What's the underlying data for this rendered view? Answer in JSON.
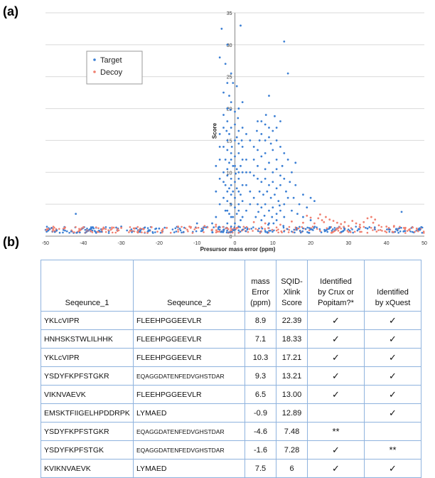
{
  "panel_a_label": "(a)",
  "panel_b_label": "(b)",
  "chart_data": {
    "type": "scatter",
    "title": "",
    "xlabel": "Presursor mass error  (ppm)",
    "ylabel": "Score",
    "xlim": [
      -50,
      50
    ],
    "ylim": [
      0,
      35
    ],
    "x_ticks": [
      "-50",
      "-40",
      "-30",
      "-20",
      "-10",
      "0",
      "10",
      "20",
      "30",
      "40",
      "50"
    ],
    "y_ticks": [
      "0",
      "5",
      "10",
      "15",
      "20",
      "25",
      "30",
      "35"
    ],
    "grid": "horizontal",
    "legend_position": "upper-left",
    "series": [
      {
        "name": "Target",
        "color": "#3b7fd4",
        "points": [
          [
            -3.5,
            32.5
          ],
          [
            1.5,
            33
          ],
          [
            13,
            30.5
          ],
          [
            -2,
            30
          ],
          [
            -4,
            28
          ],
          [
            -2.5,
            27
          ],
          [
            -1,
            25.5
          ],
          [
            -0.5,
            24
          ],
          [
            0.5,
            23.5
          ],
          [
            -1.5,
            22
          ],
          [
            -2,
            20
          ],
          [
            9,
            22
          ],
          [
            14,
            25.5
          ],
          [
            -3,
            19
          ],
          [
            -2,
            18
          ],
          [
            -1,
            17
          ],
          [
            0,
            17.5
          ],
          [
            1,
            16.5
          ],
          [
            2,
            17
          ],
          [
            -1.5,
            16
          ],
          [
            0.5,
            15.5
          ],
          [
            6,
            18
          ],
          [
            7,
            18
          ],
          [
            8,
            17.5
          ],
          [
            9,
            17
          ],
          [
            10,
            16.5
          ],
          [
            11,
            17
          ],
          [
            6.5,
            15
          ],
          [
            8,
            15
          ],
          [
            9.5,
            14.5
          ],
          [
            11,
            15
          ],
          [
            12,
            14
          ],
          [
            5,
            14
          ],
          [
            -3,
            14
          ],
          [
            -2,
            13.5
          ],
          [
            -1,
            13
          ],
          [
            0,
            12.5
          ],
          [
            1,
            13
          ],
          [
            2,
            14
          ],
          [
            -2.5,
            12
          ],
          [
            -1.5,
            11.5
          ],
          [
            -0.5,
            11
          ],
          [
            0.5,
            10.5
          ],
          [
            1.5,
            11
          ],
          [
            -3,
            10
          ],
          [
            -2,
            9.5
          ],
          [
            -1,
            9
          ],
          [
            0,
            8.5
          ],
          [
            1,
            9
          ],
          [
            2,
            10
          ],
          [
            -2.5,
            8
          ],
          [
            -1.5,
            7.5
          ],
          [
            -0.5,
            7
          ],
          [
            0.5,
            7.5
          ],
          [
            1.5,
            6.5
          ],
          [
            -3,
            6
          ],
          [
            -2,
            5.5
          ],
          [
            -1,
            5
          ],
          [
            0,
            4.5
          ],
          [
            1,
            5
          ],
          [
            2,
            5.5
          ],
          [
            -2.5,
            4
          ],
          [
            -1.5,
            3.5
          ],
          [
            -0.5,
            3
          ],
          [
            0.5,
            3.5
          ],
          [
            1.5,
            2.5
          ],
          [
            -2,
            2
          ],
          [
            0,
            2
          ],
          [
            -1,
            1.5
          ],
          [
            1,
            1.5
          ],
          [
            5,
            12
          ],
          [
            6,
            11
          ],
          [
            7,
            12.5
          ],
          [
            8,
            10.5
          ],
          [
            9,
            11.5
          ],
          [
            10,
            10
          ],
          [
            11,
            12
          ],
          [
            12,
            9.5
          ],
          [
            6,
            9
          ],
          [
            7,
            8.5
          ],
          [
            8,
            9
          ],
          [
            9,
            8
          ],
          [
            10,
            8.5
          ],
          [
            11,
            7.5
          ],
          [
            12,
            8
          ],
          [
            13,
            9
          ],
          [
            6.5,
            7
          ],
          [
            7.5,
            6.5
          ],
          [
            8.5,
            7
          ],
          [
            9.5,
            6
          ],
          [
            10.5,
            6.5
          ],
          [
            11.5,
            5.5
          ],
          [
            5,
            6
          ],
          [
            6,
            5
          ],
          [
            7,
            4.5
          ],
          [
            8,
            5
          ],
          [
            9,
            4
          ],
          [
            10,
            4.5
          ],
          [
            11,
            3.5
          ],
          [
            12,
            4
          ],
          [
            13,
            5
          ],
          [
            14,
            6
          ],
          [
            5.5,
            3
          ],
          [
            7,
            2.5
          ],
          [
            9,
            2
          ],
          [
            11,
            2.5
          ],
          [
            13,
            3
          ],
          [
            15,
            4
          ],
          [
            17,
            5
          ],
          [
            18,
            6.5
          ],
          [
            16,
            8
          ],
          [
            4,
            15
          ],
          [
            3,
            12
          ],
          [
            3,
            8
          ],
          [
            3,
            4
          ],
          [
            4,
            7
          ],
          [
            4,
            10
          ],
          [
            -5,
            7
          ],
          [
            -5,
            3
          ],
          [
            -5,
            11
          ],
          [
            -6,
            2
          ],
          [
            -4,
            16
          ],
          [
            -4,
            12
          ],
          [
            -4,
            5
          ],
          [
            -42,
            3.5
          ],
          [
            44,
            3.8
          ],
          [
            -30,
            1.5
          ],
          [
            -20,
            1.2
          ],
          [
            25,
            1.4
          ],
          [
            35,
            1.2
          ],
          [
            -10,
            2
          ],
          [
            20,
            2.5
          ],
          [
            14,
            12
          ],
          [
            15,
            10
          ],
          [
            13,
            13
          ],
          [
            16,
            11.5
          ],
          [
            12,
            18
          ],
          [
            10,
            13.5
          ],
          [
            5,
            9.5
          ],
          [
            6,
            13.5
          ],
          [
            7,
            16
          ],
          [
            8,
            13
          ],
          [
            9,
            15.5
          ],
          [
            11,
            10.5
          ],
          [
            -1,
            21
          ],
          [
            0,
            19.5
          ],
          [
            -2,
            24
          ],
          [
            2,
            21
          ],
          [
            1,
            20
          ],
          [
            -3,
            22.5
          ],
          [
            3,
            16
          ],
          [
            -3,
            17
          ],
          [
            -2,
            15
          ],
          [
            0,
            15
          ],
          [
            1,
            14.5
          ],
          [
            2,
            12
          ],
          [
            -1,
            12
          ],
          [
            0,
            11
          ],
          [
            1,
            10
          ],
          [
            -2,
            10.5
          ],
          [
            -1,
            8
          ],
          [
            0,
            6
          ],
          [
            1,
            7
          ],
          [
            2,
            8
          ],
          [
            -3,
            8.5
          ],
          [
            -2,
            7
          ],
          [
            -4,
            9
          ],
          [
            -4,
            14
          ],
          [
            3,
            10
          ],
          [
            4,
            5
          ],
          [
            -1,
            3
          ],
          [
            0,
            1
          ],
          [
            2,
            1
          ],
          [
            -3,
            1
          ],
          [
            -2,
            4
          ],
          [
            1,
            4
          ],
          [
            2,
            3
          ],
          [
            -1,
            6.5
          ],
          [
            0.2,
            9.8
          ],
          [
            -0.8,
            14
          ],
          [
            1.8,
            15
          ],
          [
            -2.2,
            16.5
          ],
          [
            0.8,
            18.5
          ],
          [
            -1.2,
            19.8
          ],
          [
            5.8,
            16.5
          ],
          [
            8.2,
            19
          ],
          [
            10.5,
            18.8
          ],
          [
            12.5,
            11
          ],
          [
            13.5,
            7
          ],
          [
            14.5,
            8.5
          ],
          [
            15.5,
            6
          ],
          [
            16.5,
            3.5
          ],
          [
            18,
            3
          ],
          [
            19,
            4.5
          ],
          [
            20,
            6
          ],
          [
            21,
            5.5
          ],
          [
            6.2,
            3.8
          ],
          [
            7.8,
            3.2
          ],
          [
            9.8,
            3
          ],
          [
            11.8,
            4.8
          ],
          [
            10.2,
            2
          ],
          [
            8.8,
            1.8
          ],
          [
            7.2,
            1.2
          ],
          [
            12.8,
            1.6
          ]
        ]
      },
      {
        "name": "Decoy",
        "color": "#f08070",
        "points": [
          [
            22,
            2.8
          ],
          [
            23,
            2.5
          ],
          [
            24,
            3
          ],
          [
            25,
            2.6
          ],
          [
            26,
            2.4
          ],
          [
            22.5,
            3.4
          ],
          [
            23.5,
            2.2
          ],
          [
            21,
            2
          ],
          [
            27,
            2.1
          ],
          [
            28,
            1.9
          ],
          [
            29,
            2.2
          ],
          [
            35,
            2.8
          ],
          [
            36,
            3
          ],
          [
            37,
            2.6
          ],
          [
            34,
            2.2
          ],
          [
            36.5,
            2.1
          ],
          [
            33,
            1.8
          ],
          [
            32,
            2
          ],
          [
            -45,
            1.2
          ],
          [
            -40,
            1.4
          ],
          [
            -35,
            1.1
          ],
          [
            -30,
            1.3
          ],
          [
            -25,
            1.2
          ],
          [
            -18,
            1.3
          ],
          [
            -12,
            1.5
          ],
          [
            -8,
            1.6
          ],
          [
            -5,
            1.8
          ],
          [
            5,
            2.2
          ],
          [
            8,
            2
          ],
          [
            12,
            1.8
          ],
          [
            15,
            2.3
          ],
          [
            18,
            2.1
          ],
          [
            40,
            1.5
          ],
          [
            45,
            1.3
          ],
          [
            48,
            1.2
          ],
          [
            30,
            1.6
          ],
          [
            31,
            2.4
          ],
          [
            38,
            1.7
          ],
          [
            42,
            1.6
          ],
          [
            -48,
            1.1
          ],
          [
            -22,
            1.4
          ],
          [
            -15,
            1.5
          ],
          [
            19,
            3.2
          ],
          [
            20,
            2.9
          ]
        ]
      }
    ],
    "baseline_band": {
      "target_color": "#3b7fd4",
      "decoy_color": "#f08070",
      "y_range": [
        0.5,
        1.5
      ]
    }
  },
  "table": {
    "headers": [
      [
        "Seqeunce_1"
      ],
      [
        "Seqeunce_2"
      ],
      [
        "mass",
        "Error",
        "(ppm)"
      ],
      [
        "SQID-",
        "Xlink",
        "Score"
      ],
      [
        "Identified",
        "by Crux or",
        "Popitam?*"
      ],
      [
        "Identified",
        "by xQuest"
      ]
    ],
    "rows": [
      {
        "seq1": "YKLcVIPR",
        "seq2": "FLEEHPGGEEVLR",
        "mass_error": "8.9",
        "score": "22.39",
        "crux": "✓",
        "xquest": "✓"
      },
      {
        "seq1": "HNHSKSTWLILHHK",
        "seq2": "FLEEHPGGEEVLR",
        "mass_error": "7.1",
        "score": "18.33",
        "crux": "✓",
        "xquest": "✓"
      },
      {
        "seq1": "YKLcVIPR",
        "seq2": "FLEEHPGGEEVLR",
        "mass_error": "10.3",
        "score": "17.21",
        "crux": "✓",
        "xquest": "✓"
      },
      {
        "seq1": "YSDYFKPFSTGKR",
        "seq2": "EQAGGDATENFEDVGHSTDAR",
        "mass_error": "9.3",
        "score": "13.21",
        "crux": "✓",
        "xquest": "✓"
      },
      {
        "seq1": "VIKNVAEVK",
        "seq2": "FLEEHPGGEEVLR",
        "mass_error": "6.5",
        "score": "13.00",
        "crux": "✓",
        "xquest": "✓"
      },
      {
        "seq1": "EMSKTFIIGELHPDDRPK",
        "seq2": "LYMAED",
        "mass_error": "-0.9",
        "score": "12.89",
        "crux": "",
        "xquest": "✓"
      },
      {
        "seq1": "YSDYFKPFSTGKR",
        "seq2": "EQAGGDATENFEDVGHSTDAR",
        "mass_error": "-4.6",
        "score": "7.48",
        "crux": "**",
        "xquest": ""
      },
      {
        "seq1": "YSDYFKPFSTGK",
        "seq2": "EQAGGDATENFEDVGHSTDAR",
        "mass_error": "-1.6",
        "score": "7.28",
        "crux": "✓",
        "xquest": "**"
      },
      {
        "seq1": "KVIKNVAEVK",
        "seq2": "LYMAED",
        "mass_error": "7.5",
        "score": "6",
        "crux": "✓",
        "xquest": "✓"
      }
    ]
  }
}
